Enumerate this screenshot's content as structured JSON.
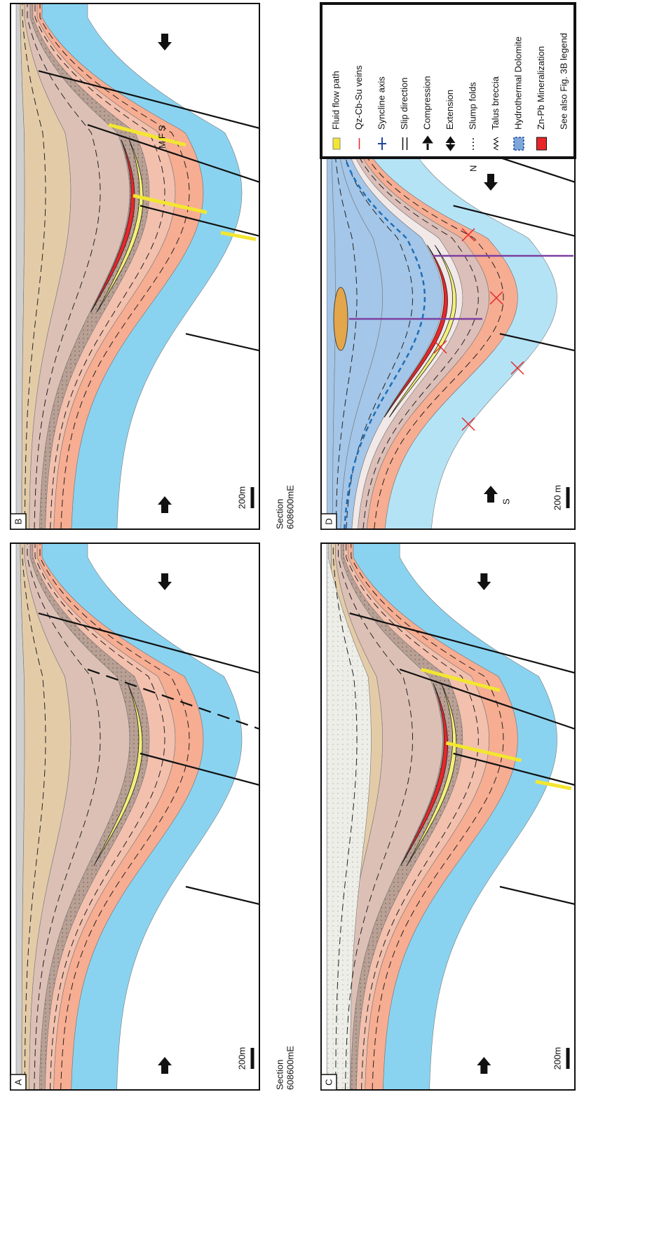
{
  "panels": [
    {
      "label": "A",
      "scale": "200m",
      "section": [
        "Section",
        "608600mE"
      ]
    },
    {
      "label": "B",
      "scale": "200m",
      "section": [
        "Section",
        "608600mE"
      ],
      "annotation": "MFS"
    },
    {
      "label": "C",
      "scale": "200m"
    },
    {
      "label": "D",
      "scale": "200 m",
      "south": "S",
      "north": "N"
    }
  ],
  "legend": {
    "items": [
      "Fluid flow path",
      "Qz-Cb-Su veins",
      "Syncline axis",
      "Slip direction",
      "Compression",
      "Extension",
      "Slump folds",
      "Talus breccia",
      "Hydrothermal Dolomite",
      "Zn-Pb Mineralization",
      "See also Fig. 3B legend"
    ]
  }
}
